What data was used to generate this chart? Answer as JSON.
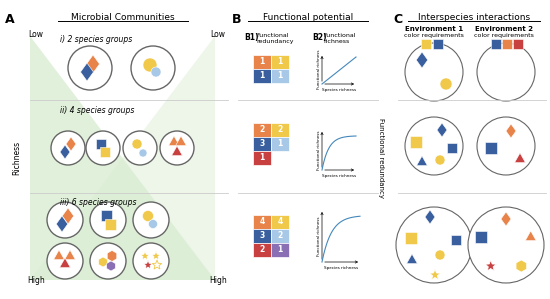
{
  "title_A": "A",
  "title_B": "B",
  "title_C": "C",
  "section_A_title": "Microbial Communities",
  "section_B_title": "Functional potential",
  "section_C_title": "Interspecies interactions",
  "label_low": "Low",
  "label_high": "High",
  "label_richness": "Richness",
  "label_func_red": "Functional redundancy",
  "row1_label": "i) 2 species groups",
  "row2_label": "ii) 4 species groups",
  "row3_label": "iii) 6 species groups",
  "B1_label": "B1)",
  "B2_label": "B2)",
  "env1_label": "Environment 1\ncolor requirements",
  "env2_label": "Environment 2\ncolor requirements",
  "colors": {
    "orange": "#E8834A",
    "blue_dark": "#3A5F9E",
    "blue_light": "#A8C8E8",
    "yellow": "#F0C84A",
    "red": "#C94040",
    "purple": "#8B6FB5",
    "green_bg": "#D8ECD0",
    "white": "#FFFFFF",
    "gray_border": "#AAAAAA",
    "light_gray": "#F5F5F5"
  }
}
